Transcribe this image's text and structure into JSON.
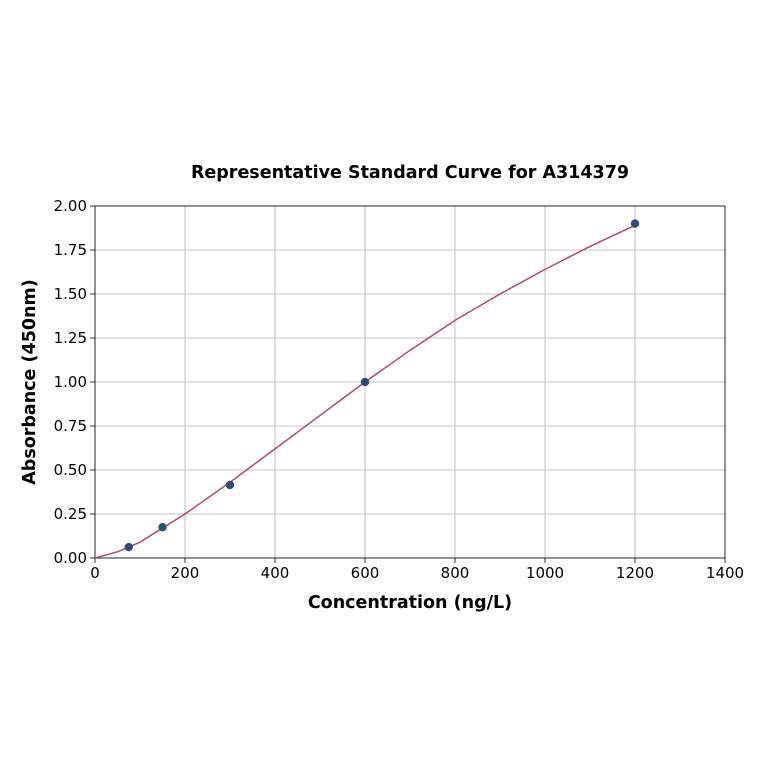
{
  "chart_data": {
    "type": "scatter",
    "title": "Representative Standard Curve for A314379",
    "x_label": "Concentration (ng/L)",
    "y_label": "Absorbance (450nm)",
    "xlim": [
      0,
      1400
    ],
    "ylim": [
      0,
      2.0
    ],
    "xticks": [
      0,
      200,
      400,
      600,
      800,
      1000,
      1200,
      1400
    ],
    "yticks": [
      {
        "value": 0,
        "label": "0.00"
      },
      {
        "value": 0.25,
        "label": "0.25"
      },
      {
        "value": 0.5,
        "label": "0.50"
      },
      {
        "value": 0.75,
        "label": "0.75"
      },
      {
        "value": 1.0,
        "label": "1.00"
      },
      {
        "value": 1.25,
        "label": "1.25"
      },
      {
        "value": 1.5,
        "label": "1.50"
      },
      {
        "value": 1.75,
        "label": "1.75"
      },
      {
        "value": 2.0,
        "label": "2.00"
      }
    ],
    "grid": true,
    "series": [
      {
        "type": "line",
        "color": "#b5476a",
        "x": [
          0,
          50,
          100,
          200,
          300,
          400,
          500,
          600,
          700,
          800,
          900,
          1000,
          1100,
          1200
        ],
        "y": [
          0,
          0.035,
          0.09,
          0.25,
          0.43,
          0.62,
          0.81,
          1.0,
          1.18,
          1.35,
          1.5,
          1.64,
          1.77,
          1.89
        ]
      },
      {
        "type": "scatter",
        "color": "#2e4a7d",
        "x": [
          75,
          150,
          300,
          600,
          1200
        ],
        "y": [
          0.062,
          0.175,
          0.415,
          1.0,
          1.9
        ]
      }
    ]
  }
}
